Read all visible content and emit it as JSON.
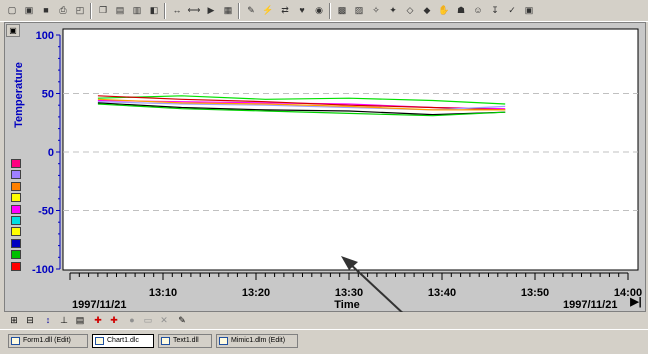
{
  "toolbar": {
    "icons": [
      "new-icon",
      "open-icon",
      "save-icon",
      "print-icon",
      "print-preview-icon",
      "copy-icon",
      "layout-icon",
      "image-icon",
      "help-icon",
      "zoom-fit-icon",
      "zoom-width-icon",
      "play-icon",
      "properties-icon",
      "edit-icon",
      "lightning-icon",
      "transfer-icon",
      "heart-icon",
      "target-icon",
      "tool-a-icon",
      "tool-b-icon",
      "tool-c-icon",
      "tool-d-icon",
      "tool-e-icon",
      "tool-f-icon",
      "tool-g-icon",
      "tool-h-icon",
      "tool-i-icon",
      "tool-j-icon",
      "tool-k-icon",
      "tool-l-icon"
    ]
  },
  "chart_data": {
    "type": "line",
    "ylabel": "Temperature",
    "xlabel": "Time",
    "ylim": [
      -100,
      100
    ],
    "y_ticks": [
      "100",
      "50",
      "0",
      "-50",
      "-100"
    ],
    "x_ticks": [
      "13:10",
      "13:20",
      "13:30",
      "13:40",
      "13:50",
      "14:00"
    ],
    "x_start_label": "1997/11/21",
    "x_end_label": "1997/11/21",
    "x_range_minutes": [
      13.0,
      14.0
    ],
    "grid": true,
    "series": [
      {
        "color": "#00e000",
        "x": [
          13.05,
          13.2,
          13.35,
          13.5,
          13.65,
          13.78
        ],
        "values": [
          46,
          48,
          45,
          46,
          44,
          41
        ]
      },
      {
        "color": "#ff00ff",
        "x": [
          13.05,
          13.2,
          13.35,
          13.5,
          13.65,
          13.78
        ],
        "values": [
          44,
          43,
          42,
          41,
          38,
          37
        ]
      },
      {
        "color": "#d00000",
        "x": [
          13.05,
          13.2,
          13.35,
          13.5,
          13.65,
          13.78
        ],
        "values": [
          48,
          45,
          43,
          40,
          38,
          36
        ]
      },
      {
        "color": "#a0a0ff",
        "x": [
          13.05,
          13.2,
          13.35,
          13.5,
          13.65,
          13.78
        ],
        "values": [
          43,
          41,
          40,
          38,
          36,
          39
        ]
      },
      {
        "color": "#000000",
        "x": [
          13.05,
          13.2,
          13.35,
          13.5,
          13.65,
          13.78
        ],
        "values": [
          42,
          38,
          36,
          35,
          32,
          34
        ]
      },
      {
        "color": "#00d000",
        "x": [
          13.05,
          13.2,
          13.35,
          13.5,
          13.65,
          13.78
        ],
        "values": [
          41,
          37,
          35,
          33,
          31,
          34
        ]
      },
      {
        "color": "#ffa000",
        "x": [
          13.05,
          13.2,
          13.35,
          13.5,
          13.65,
          13.78
        ],
        "values": [
          45,
          42,
          41,
          39,
          36,
          36
        ]
      }
    ]
  },
  "legend_swatches": [
    "#ff0080",
    "#a080ff",
    "#ff8000",
    "#ffff00",
    "#ff00ff",
    "#00e0e0",
    "#ffff00",
    "#0000c0",
    "#00c000",
    "#ff0000"
  ],
  "taskbar": {
    "items": [
      {
        "label": "Form1.dll (Edit)",
        "active": false
      },
      {
        "label": "Chart1.dlc",
        "active": true
      },
      {
        "label": "Text1.dll",
        "active": false
      },
      {
        "label": "Mimic1.dlm (Edit)",
        "active": false
      }
    ]
  }
}
